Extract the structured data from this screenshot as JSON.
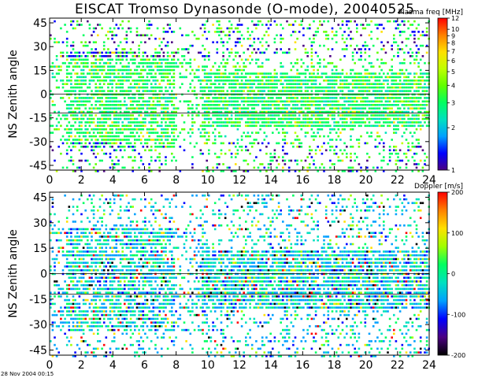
{
  "title": "EISCAT Tromso Dynasonde (O-mode),  20040525",
  "footer": "28 Nov 2004 00:15",
  "chart_data": [
    {
      "type": "heatmap",
      "ylabel": "NS Zenith angle",
      "colorbar_label": "Plasma freq [MHz]",
      "colorbar_ticks": [
        "12",
        "10",
        "9",
        "8",
        "7",
        "6",
        "5",
        "4",
        "3",
        "2",
        "1"
      ],
      "colorbar_tick_values": [
        12,
        10,
        9,
        8,
        7,
        6,
        5,
        4,
        3,
        2,
        1
      ],
      "colorbar_scale": "log",
      "zlim": [
        1,
        12
      ],
      "xlim": [
        0,
        24
      ],
      "ylim": [
        -48,
        48
      ],
      "x_ticks": [
        "0",
        "2",
        "4",
        "6",
        "8",
        "10",
        "12",
        "14",
        "16",
        "18",
        "20",
        "22",
        "24"
      ],
      "y_ticks": [
        "45",
        "30",
        "15",
        "0",
        "-15",
        "-30",
        "-45"
      ],
      "reference_lines_y": [
        0,
        -12
      ],
      "grid": false,
      "colors": [
        "#4b0082",
        "#0000ff",
        "#00a0ff",
        "#00e0c0",
        "#00ff60",
        "#60ff00",
        "#c0ff00",
        "#ffe000",
        "#ff8000",
        "#ff0000"
      ]
    },
    {
      "type": "heatmap",
      "ylabel": "NS Zenith angle",
      "colorbar_label": "Doppler [m/s]",
      "colorbar_ticks": [
        "200",
        "100",
        "0",
        "-100",
        "-200"
      ],
      "colorbar_tick_values": [
        200,
        100,
        0,
        -100,
        -200
      ],
      "colorbar_scale": "linear",
      "zlim": [
        -200,
        200
      ],
      "xlim": [
        0,
        24
      ],
      "ylim": [
        -48,
        48
      ],
      "x_ticks": [
        "0",
        "2",
        "4",
        "6",
        "8",
        "10",
        "12",
        "14",
        "16",
        "18",
        "20",
        "22",
        "24"
      ],
      "y_ticks": [
        "45",
        "30",
        "15",
        "0",
        "-15",
        "-30",
        "-45"
      ],
      "reference_lines_y": [
        0,
        -12
      ],
      "grid": false,
      "colors": [
        "#000000",
        "#4b0082",
        "#0000ff",
        "#00a0ff",
        "#00e0c0",
        "#00ff60",
        "#a0ff00",
        "#ffe000",
        "#ff8000",
        "#ff0000"
      ]
    }
  ]
}
